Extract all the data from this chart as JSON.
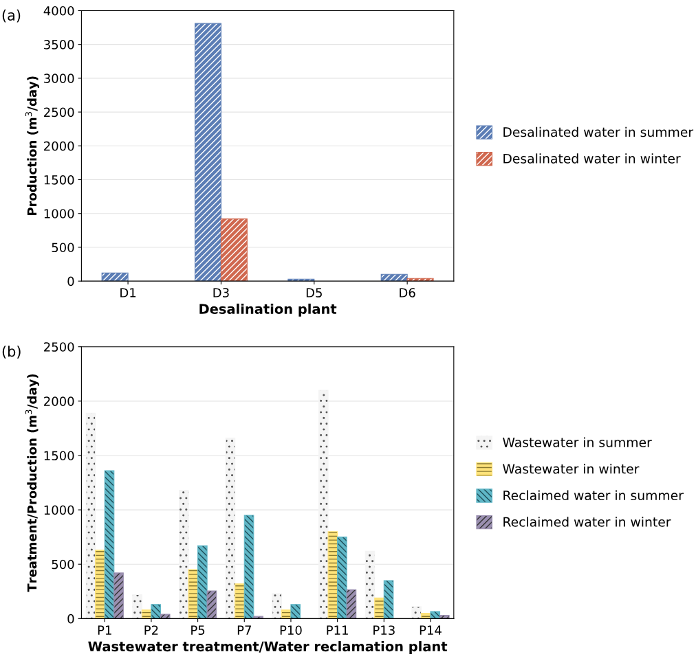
{
  "chart_data": [
    {
      "type": "bar",
      "title": "(a)",
      "xlabel": "Desalination plant",
      "ylabel": "Production (m$^{3}$/day)",
      "categories": [
        "D1",
        "D3",
        "D5",
        "D6"
      ],
      "series": [
        {
          "name": "Desalinated water in summer",
          "color": "#5b7db5",
          "values": [
            120,
            3810,
            30,
            100
          ]
        },
        {
          "name": "Desalinated water in winter",
          "color": "#d0684f",
          "values": [
            null,
            920,
            null,
            40
          ]
        }
      ],
      "ylim": [
        0,
        4000
      ],
      "yticks": [
        0,
        500,
        1000,
        1500,
        2000,
        2500,
        3000,
        3500,
        4000
      ],
      "grid": "y",
      "legend": "right"
    },
    {
      "type": "bar",
      "title": "(b)",
      "xlabel": "Wastewater treatment/Water reclamation plant",
      "ylabel": "Treatment/Production (m$^{3}$/day)",
      "categories": [
        "P1",
        "P2",
        "P5",
        "P7",
        "P10",
        "P11",
        "P13",
        "P14"
      ],
      "series": [
        {
          "name": "Wastewater in summer",
          "color": "#f4f4f4",
          "values": [
            1890,
            220,
            1180,
            1660,
            230,
            2100,
            620,
            110
          ]
        },
        {
          "name": "Wastewater in winter",
          "color": "#ffe37a",
          "values": [
            630,
            80,
            450,
            320,
            80,
            800,
            190,
            50
          ]
        },
        {
          "name": "Reclaimed water in summer",
          "color": "#5fb7c7",
          "values": [
            1360,
            130,
            670,
            950,
            130,
            750,
            350,
            65
          ]
        },
        {
          "name": "Reclaimed water in winter",
          "color": "#9a8fb0",
          "values": [
            420,
            40,
            255,
            20,
            null,
            265,
            null,
            30
          ]
        }
      ],
      "ylim": [
        0,
        2500
      ],
      "yticks": [
        0,
        500,
        1000,
        1500,
        2000,
        2500
      ],
      "grid": "y",
      "legend": "right"
    }
  ]
}
